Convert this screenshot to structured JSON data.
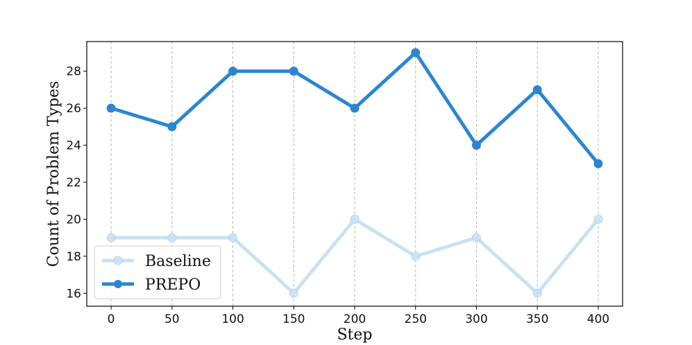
{
  "chart_data": {
    "type": "line",
    "x": [
      0,
      50,
      100,
      150,
      200,
      250,
      300,
      350,
      400
    ],
    "series": [
      {
        "name": "Baseline",
        "values": [
          19,
          19,
          19,
          16,
          20,
          18,
          19,
          16,
          20
        ],
        "color": "#c9e1f3"
      },
      {
        "name": "PREPO",
        "values": [
          26,
          25,
          28,
          28,
          26,
          29,
          24,
          27,
          23
        ],
        "color": "#2b86d0"
      }
    ],
    "xlabel": "Step",
    "ylabel": "Count of Problem Types",
    "xlim": [
      -20,
      420
    ],
    "ylim": [
      15.3,
      29.6
    ],
    "xticks": [
      "0",
      "50",
      "100",
      "150",
      "200",
      "250",
      "300",
      "350",
      "400"
    ],
    "yticks": [
      "16",
      "18",
      "20",
      "22",
      "24",
      "26",
      "28"
    ],
    "grid": "vertical-dashed",
    "legend_position": "lower-left"
  }
}
